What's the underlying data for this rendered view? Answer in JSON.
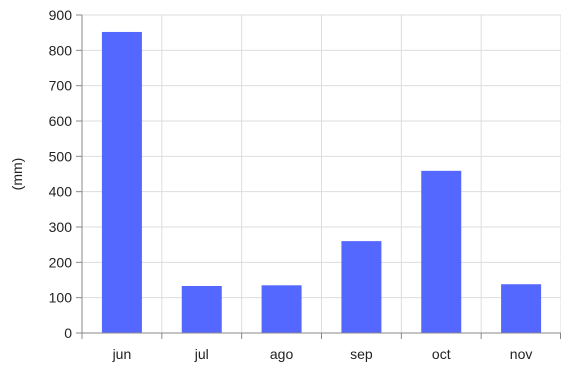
{
  "chart_data": {
    "type": "bar",
    "categories": [
      "jun",
      "jul",
      "ago",
      "sep",
      "oct",
      "nov"
    ],
    "values": [
      852,
      133,
      135,
      260,
      459,
      138
    ],
    "title": "",
    "xlabel": "",
    "ylabel": "(mm)",
    "ylim": [
      0,
      900
    ],
    "yticks": [
      0,
      100,
      200,
      300,
      400,
      500,
      600,
      700,
      800,
      900
    ],
    "grid": true,
    "bar_color": "#5468FF",
    "grid_color": "#dddddd"
  }
}
